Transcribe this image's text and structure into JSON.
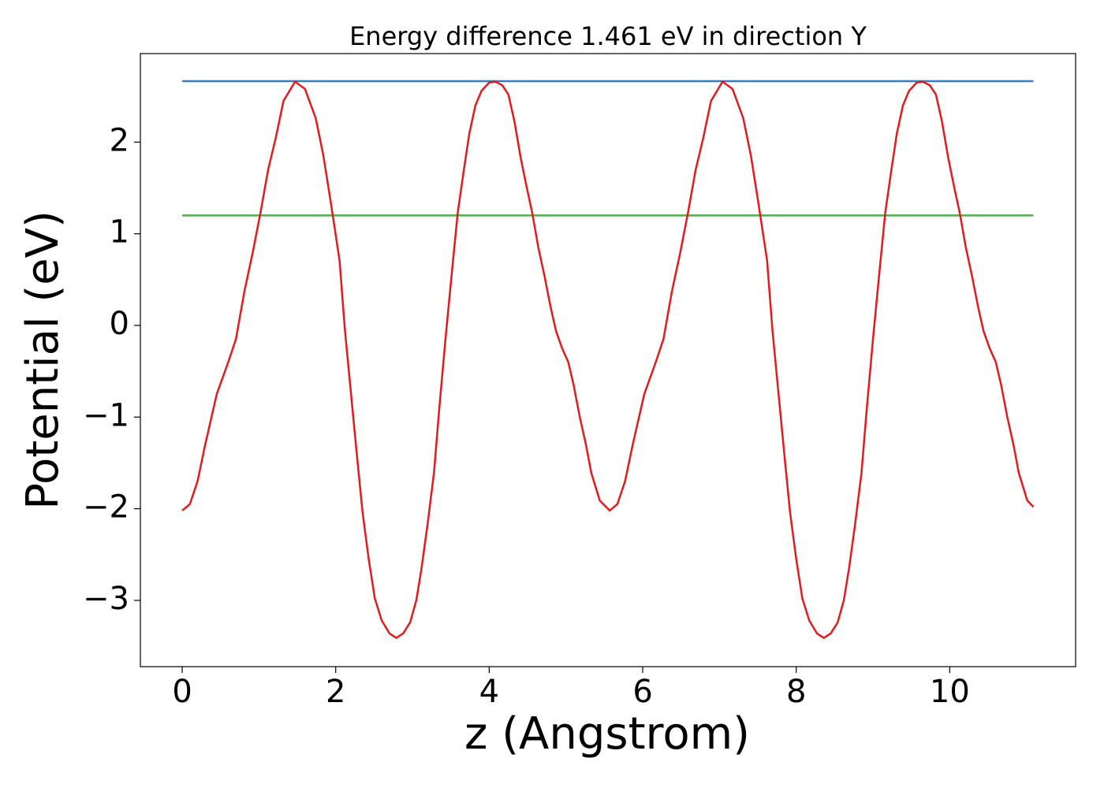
{
  "chart_data": {
    "type": "line",
    "title": "Energy difference 1.461 eV in direction Y",
    "xlabel": "z (Angstrom)",
    "ylabel": "Potential (eV)",
    "xlim": [
      -0.545,
      11.64
    ],
    "ylim": [
      -3.723,
      2.966
    ],
    "xticks": [
      0,
      2,
      4,
      6,
      8,
      10
    ],
    "yticks": [
      {
        "value": -3,
        "label": "−3"
      },
      {
        "value": -2,
        "label": "−2"
      },
      {
        "value": -1,
        "label": "−1"
      },
      0,
      1,
      2
    ],
    "series": [
      {
        "color": "#e41a1c",
        "x": [
          0,
          0.1,
          0.2,
          0.3,
          0.45,
          0.6,
          0.7,
          0.81,
          0.92,
          1.02,
          1.12,
          1.22,
          1.32,
          1.47,
          1.6,
          1.74,
          1.84,
          1.94,
          2.05,
          2.12,
          2.2,
          2.28,
          2.35,
          2.43,
          2.51,
          2.6,
          2.7,
          2.79,
          2.88,
          2.97,
          3.05,
          3.12,
          3.2,
          3.28,
          3.35,
          3.43,
          3.51,
          3.59,
          3.67,
          3.74,
          3.82,
          3.9,
          4.0,
          4.08,
          4.17,
          4.25,
          4.33,
          4.41,
          4.49,
          4.56,
          4.64,
          4.72,
          4.8,
          4.87,
          4.95,
          5.03,
          5.1,
          5.18,
          5.26,
          5.33,
          5.44,
          5.57,
          5.67,
          5.77,
          5.87,
          6.02,
          6.17,
          6.27,
          6.38,
          6.49,
          6.59,
          6.69,
          6.79,
          6.89,
          7.04,
          7.17,
          7.31,
          7.41,
          7.51,
          7.62,
          7.69,
          7.77,
          7.85,
          7.92,
          8.0,
          8.08,
          8.17,
          8.27,
          8.36,
          8.45,
          8.54,
          8.62,
          8.69,
          8.77,
          8.85,
          8.92,
          9.0,
          9.08,
          9.16,
          9.24,
          9.31,
          9.39,
          9.47,
          9.57,
          9.65,
          9.74,
          9.82,
          9.9,
          9.98,
          10.06,
          10.13,
          10.21,
          10.29,
          10.37,
          10.44,
          10.52,
          10.6,
          10.67,
          10.75,
          10.83,
          10.9,
          11.01,
          11.09
        ],
        "values": [
          -2.02,
          -1.95,
          -1.7,
          -1.3,
          -0.75,
          -0.4,
          -0.15,
          0.37,
          0.8,
          1.23,
          1.7,
          2.05,
          2.45,
          2.66,
          2.58,
          2.26,
          1.85,
          1.32,
          0.71,
          -0.05,
          -0.75,
          -1.45,
          -2.04,
          -2.55,
          -2.98,
          -3.22,
          -3.36,
          -3.41,
          -3.36,
          -3.24,
          -3.0,
          -2.64,
          -2.15,
          -1.61,
          -0.9,
          -0.15,
          0.55,
          1.23,
          1.7,
          2.09,
          2.4,
          2.56,
          2.65,
          2.66,
          2.62,
          2.52,
          2.22,
          1.83,
          1.5,
          1.23,
          0.85,
          0.54,
          0.2,
          -0.06,
          -0.25,
          -0.4,
          -0.65,
          -1.0,
          -1.3,
          -1.61,
          -1.91,
          -2.02,
          -1.95,
          -1.7,
          -1.3,
          -0.75,
          -0.4,
          -0.15,
          0.37,
          0.8,
          1.23,
          1.7,
          2.05,
          2.45,
          2.66,
          2.58,
          2.26,
          1.85,
          1.32,
          0.71,
          -0.05,
          -0.75,
          -1.45,
          -2.04,
          -2.55,
          -2.98,
          -3.22,
          -3.36,
          -3.41,
          -3.36,
          -3.24,
          -3.0,
          -2.64,
          -2.15,
          -1.61,
          -0.9,
          -0.15,
          0.55,
          1.23,
          1.7,
          2.09,
          2.4,
          2.56,
          2.65,
          2.66,
          2.62,
          2.52,
          2.22,
          1.83,
          1.5,
          1.23,
          0.85,
          0.54,
          0.2,
          -0.06,
          -0.25,
          -0.4,
          -0.65,
          -1.0,
          -1.3,
          -1.61,
          -1.91,
          -1.98
        ]
      },
      {
        "color": "#377eb8",
        "x": [
          0,
          11.09
        ],
        "values": [
          2.665,
          2.665
        ]
      },
      {
        "color": "#4daf4a",
        "x": [
          0,
          11.09
        ],
        "values": [
          1.2,
          1.2
        ]
      }
    ]
  }
}
